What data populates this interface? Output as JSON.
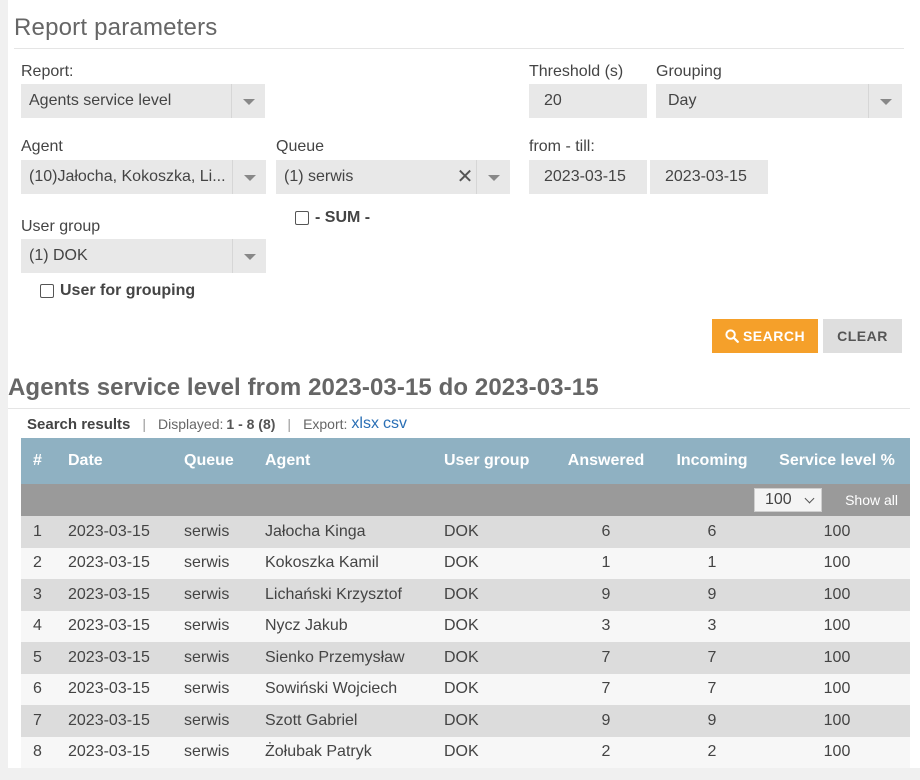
{
  "page": {
    "title": "Report parameters"
  },
  "form": {
    "report_label": "Report:",
    "report_value": "Agents service level",
    "threshold_label": "Threshold (s)",
    "threshold_value": "20",
    "grouping_label": "Grouping",
    "grouping_value": "Day",
    "agent_label": "Agent",
    "agent_value": "(10)Jałocha, Kokoszka, Li...",
    "queue_label": "Queue",
    "queue_value": "(1) serwis",
    "from_till_label": "from - till:",
    "date_from": "2023-03-15",
    "date_till": "2023-03-15",
    "user_group_label": "User group",
    "user_group_value": "(1) DOK",
    "sum_label": "- SUM -",
    "user_for_grouping_label": "User for grouping",
    "search_label": "SEARCH",
    "clear_label": "CLEAR"
  },
  "results": {
    "title": "Agents service level from 2023-03-15 do 2023-03-15",
    "search_results_label": "Search results",
    "displayed_label": "Displayed:",
    "displayed_value": "1 - 8 (8)",
    "export_label": "Export:",
    "export_xlsx": "xlsx",
    "export_csv": "csv",
    "page_size": "100",
    "show_all_label": "Show all",
    "columns": [
      "#",
      "Date",
      "Queue",
      "Agent",
      "User group",
      "Answered",
      "Incoming",
      "Service level %"
    ],
    "rows": [
      [
        "1",
        "2023-03-15",
        "serwis",
        "Jałocha Kinga",
        "DOK",
        "6",
        "6",
        "100"
      ],
      [
        "2",
        "2023-03-15",
        "serwis",
        "Kokoszka Kamil",
        "DOK",
        "1",
        "1",
        "100"
      ],
      [
        "3",
        "2023-03-15",
        "serwis",
        "Lichański Krzysztof",
        "DOK",
        "9",
        "9",
        "100"
      ],
      [
        "4",
        "2023-03-15",
        "serwis",
        "Nycz Jakub",
        "DOK",
        "3",
        "3",
        "100"
      ],
      [
        "5",
        "2023-03-15",
        "serwis",
        "Sienko Przemysław",
        "DOK",
        "7",
        "7",
        "100"
      ],
      [
        "6",
        "2023-03-15",
        "serwis",
        "Sowiński Wojciech",
        "DOK",
        "7",
        "7",
        "100"
      ],
      [
        "7",
        "2023-03-15",
        "serwis",
        "Szott Gabriel",
        "DOK",
        "9",
        "9",
        "100"
      ],
      [
        "8",
        "2023-03-15",
        "serwis",
        "Żołubak Patryk",
        "DOK",
        "2",
        "2",
        "100"
      ]
    ]
  },
  "icons": {
    "search": "search-icon",
    "caret": "chevron-down-icon",
    "clear": "close-icon"
  },
  "colors": {
    "accent": "#f5a02a",
    "table_header": "#8fb1c2",
    "link": "#2a6fb5"
  }
}
